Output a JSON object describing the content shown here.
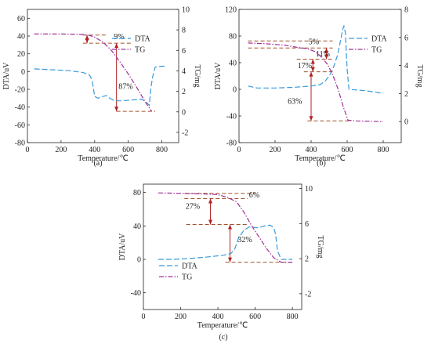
{
  "colors": {
    "dta": "#3a9ad9",
    "tg": "#a0309a",
    "ref": "#a0522d",
    "arrow": "#b22222",
    "axis": "#222222"
  },
  "chart_data": [
    {
      "type": "line",
      "panel_label": "(a)",
      "xlabel": "Temperature/℃",
      "ylabel": "DTA/uV",
      "y2label": "TG/mg",
      "xlim": [
        0,
        900
      ],
      "ylim": [
        -80,
        70
      ],
      "y2lim": [
        -3,
        10
      ],
      "xticks": [
        0,
        200,
        400,
        600,
        800
      ],
      "yticks": [
        -80,
        -60,
        -40,
        -20,
        0,
        20,
        40,
        60
      ],
      "y2ticks": [
        -2,
        0,
        2,
        4,
        6,
        8,
        10
      ],
      "legend_position": "top-right",
      "series": [
        {
          "name": "DTA",
          "axis": "left",
          "style": "dashed",
          "x": [
            40,
            150,
            250,
            330,
            370,
            385,
            400,
            420,
            450,
            470,
            490,
            520,
            560,
            620,
            680,
            710,
            725,
            735,
            745,
            760,
            800,
            820
          ],
          "y": [
            3,
            2,
            1,
            -1,
            -4,
            -10,
            -28,
            -30,
            -28,
            -27,
            -30,
            -33,
            -33,
            -32,
            -31,
            -35,
            -38,
            -18,
            -6,
            5,
            6,
            6
          ]
        },
        {
          "name": "TG",
          "axis": "right",
          "style": "dash-dot",
          "x": [
            40,
            200,
            330,
            370,
            400,
            450,
            500,
            550,
            600,
            650,
            700,
            740
          ],
          "y": [
            7.6,
            7.6,
            7.55,
            7.45,
            7.3,
            6.8,
            6.0,
            4.9,
            3.7,
            2.4,
            1.0,
            0.05
          ]
        }
      ],
      "annotations": [
        {
          "text": "9%",
          "x": 545,
          "y2": 7.35
        },
        {
          "text": "87%",
          "x": 585,
          "y2": 2.5
        }
      ],
      "reference_lines": [
        {
          "y2": 7.5,
          "x0": 330,
          "x1": 480
        },
        {
          "y2": 6.7,
          "x0": 330,
          "x1": 620
        },
        {
          "y2": 0.05,
          "x0": 530,
          "x1": 760
        }
      ],
      "arrows": [
        {
          "x": 355,
          "from_y2": 7.5,
          "to_y2": 6.7
        },
        {
          "x": 530,
          "from_y2": 6.7,
          "to_y2": 0.05
        }
      ]
    },
    {
      "type": "line",
      "panel_label": "(b)",
      "xlabel": "Temperature/℃",
      "ylabel": "DTA/uV",
      "y2label": "TG/mg",
      "xlim": [
        0,
        900
      ],
      "ylim": [
        -80,
        120
      ],
      "y2lim": [
        -1.5,
        8
      ],
      "xticks": [
        0,
        200,
        400,
        600,
        800
      ],
      "yticks": [
        -80,
        -40,
        0,
        40,
        80,
        120
      ],
      "y2ticks": [
        0,
        2,
        4,
        6,
        8
      ],
      "legend_position": "top-right",
      "series": [
        {
          "name": "DTA",
          "axis": "left",
          "style": "dashed",
          "x": [
            50,
            100,
            200,
            300,
            400,
            450,
            480,
            500,
            520,
            545,
            565,
            575,
            582,
            590,
            600,
            610,
            650,
            700,
            800
          ],
          "y": [
            5,
            2,
            2,
            3,
            5,
            7,
            13,
            20,
            30,
            50,
            75,
            90,
            95,
            85,
            30,
            0,
            -1,
            -2,
            -6
          ]
        },
        {
          "name": "TG",
          "axis": "right",
          "style": "dash-dot",
          "x": [
            50,
            150,
            250,
            320,
            380,
            420,
            450,
            470,
            490,
            510,
            530,
            550,
            580,
            605,
            650,
            800
          ],
          "y": [
            5.6,
            5.55,
            5.45,
            5.3,
            5.2,
            5.0,
            4.7,
            4.4,
            4.1,
            3.6,
            3.0,
            2.3,
            1.0,
            0.1,
            0.05,
            0.0
          ]
        }
      ],
      "annotations": [
        {
          "text": "5%",
          "x": 415,
          "y2": 5.7
        },
        {
          "text": "11%",
          "x": 465,
          "y2": 4.85
        },
        {
          "text": "17%",
          "x": 365,
          "y2": 4.0
        },
        {
          "text": "63%",
          "x": 310,
          "y2": 1.45
        }
      ],
      "reference_lines": [
        {
          "y2": 5.75,
          "x0": 50,
          "x1": 520
        },
        {
          "y2": 5.25,
          "x0": 50,
          "x1": 520
        },
        {
          "y2": 4.45,
          "x0": 320,
          "x1": 520
        },
        {
          "y2": 3.55,
          "x0": 360,
          "x1": 520
        },
        {
          "y2": 0.05,
          "x0": 380,
          "x1": 620
        }
      ],
      "arrows": [
        {
          "x": 485,
          "from_y2": 5.25,
          "to_y2": 4.45
        },
        {
          "x": 410,
          "from_y2": 4.45,
          "to_y2": 3.55
        },
        {
          "x": 400,
          "from_y2": 3.55,
          "to_y2": 0.05
        }
      ]
    },
    {
      "type": "line",
      "panel_label": "(c)",
      "xlabel": "Temperature/℃",
      "ylabel": "DTA/uV",
      "y2label": "TG/mg",
      "xlim": [
        0,
        850
      ],
      "ylim": [
        -60,
        90
      ],
      "y2lim": [
        -3.8,
        10.5
      ],
      "xticks": [
        0,
        200,
        400,
        600,
        800
      ],
      "yticks": [
        -40,
        0,
        40,
        80
      ],
      "y2ticks": [
        -2,
        2,
        6,
        10
      ],
      "legend_position": "bottom-left",
      "series": [
        {
          "name": "DTA",
          "axis": "left",
          "style": "dashed",
          "x": [
            80,
            150,
            250,
            350,
            430,
            470,
            490,
            510,
            540,
            570,
            600,
            620,
            650,
            680,
            700,
            710,
            720,
            740,
            760,
            800
          ],
          "y": [
            0,
            0,
            1,
            3,
            5,
            7,
            12,
            25,
            35,
            39,
            38,
            38,
            40,
            41,
            38,
            30,
            10,
            0,
            0,
            0
          ]
        },
        {
          "name": "TG",
          "axis": "right",
          "style": "dash-dot",
          "x": [
            80,
            200,
            300,
            400,
            450,
            500,
            540,
            580,
            620,
            660,
            700,
            740,
            800
          ],
          "y": [
            9.5,
            9.45,
            9.4,
            9.3,
            9.0,
            8.5,
            7.3,
            5.8,
            4.5,
            3.2,
            2.1,
            1.6,
            1.6
          ]
        }
      ],
      "annotations": [
        {
          "text": "6%",
          "x": 595,
          "y2": 9.3
        },
        {
          "text": "27%",
          "x": 265,
          "y2": 8.0
        },
        {
          "text": "32%",
          "x": 545,
          "y2": 4.2
        }
      ],
      "reference_lines": [
        {
          "y2": 9.45,
          "x0": 220,
          "x1": 600
        },
        {
          "y2": 8.85,
          "x0": 220,
          "x1": 560
        },
        {
          "y2": 5.9,
          "x0": 230,
          "x1": 560
        },
        {
          "y2": 1.6,
          "x0": 440,
          "x1": 800
        }
      ],
      "arrows": [
        {
          "x": 360,
          "from_y2": 8.85,
          "to_y2": 5.9
        },
        {
          "x": 465,
          "from_y2": 5.9,
          "to_y2": 1.6
        }
      ]
    }
  ]
}
